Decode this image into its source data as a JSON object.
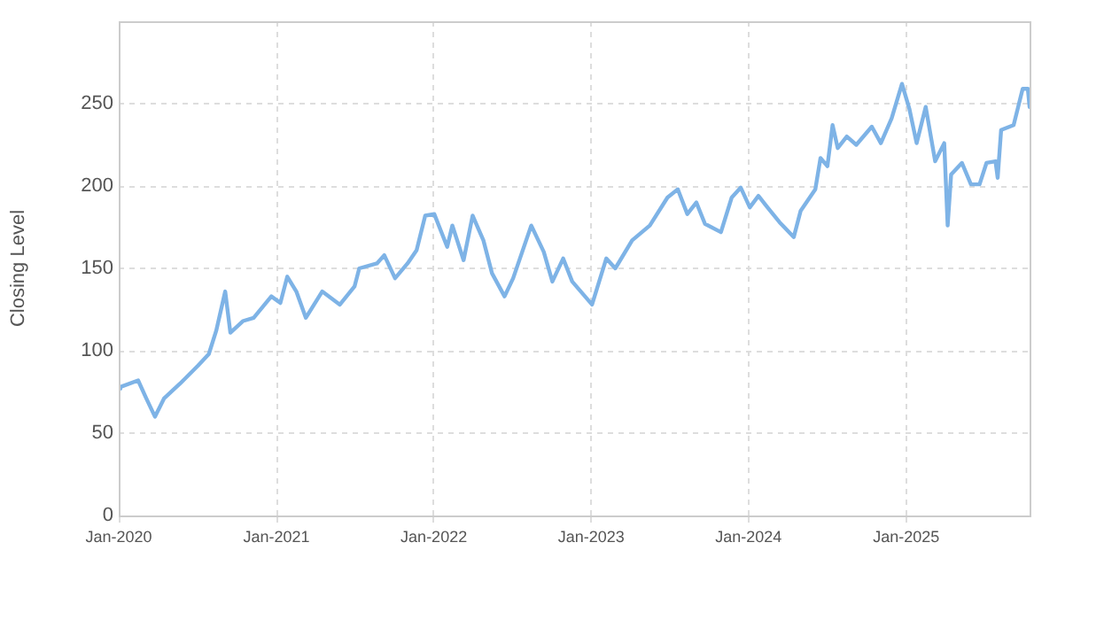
{
  "chart_data": {
    "type": "line",
    "ylabel": "Closing Level",
    "xlim": [
      "2020-01-01",
      "2025-10-14"
    ],
    "ylim": [
      0,
      300
    ],
    "yticks": [
      0,
      50,
      100,
      150,
      200,
      250
    ],
    "xticks": [
      {
        "value": "2020-01",
        "label": "Jan-2020"
      },
      {
        "value": "2021-01",
        "label": "Jan-2021"
      },
      {
        "value": "2022-01",
        "label": "Jan-2022"
      },
      {
        "value": "2023-01",
        "label": "Jan-2023"
      },
      {
        "value": "2024-01",
        "label": "Jan-2024"
      },
      {
        "value": "2025-01",
        "label": "Jan-2025"
      }
    ],
    "grid": true,
    "legend": false,
    "marker": "none",
    "line_style": "solid",
    "x": [
      "2020-01-01",
      "2020-01-05",
      "2020-02-15",
      "2020-03-05",
      "2020-03-25",
      "2020-04-15",
      "2020-05-22",
      "2020-07-03",
      "2020-07-28",
      "2020-08-14",
      "2020-09-04",
      "2020-09-16",
      "2020-10-15",
      "2020-11-09",
      "2020-12-20",
      "2021-01-10",
      "2021-01-26",
      "2021-02-16",
      "2021-03-10",
      "2021-04-17",
      "2021-05-28",
      "2021-07-01",
      "2021-07-12",
      "2021-08-22",
      "2021-09-08",
      "2021-10-03",
      "2021-11-01",
      "2021-11-22",
      "2021-12-12",
      "2022-01-02",
      "2022-02-01",
      "2022-02-13",
      "2022-03-11",
      "2022-04-01",
      "2022-04-26",
      "2022-05-16",
      "2022-06-14",
      "2022-07-04",
      "2022-08-15",
      "2022-09-13",
      "2022-10-03",
      "2022-10-28",
      "2022-11-18",
      "2023-01-03",
      "2023-02-05",
      "2023-02-26",
      "2023-04-06",
      "2023-05-17",
      "2023-06-27",
      "2023-07-21",
      "2023-08-12",
      "2023-09-02",
      "2023-09-22",
      "2023-10-29",
      "2023-11-23",
      "2023-12-14",
      "2024-01-04",
      "2024-01-24",
      "2024-02-14",
      "2024-03-13",
      "2024-04-15",
      "2024-05-01",
      "2024-06-04",
      "2024-06-16",
      "2024-07-02",
      "2024-07-14",
      "2024-07-26",
      "2024-08-16",
      "2024-09-07",
      "2024-10-13",
      "2024-11-03",
      "2024-11-28",
      "2024-12-22",
      "2025-01-08",
      "2025-01-25",
      "2025-02-15",
      "2025-03-09",
      "2025-03-30",
      "2025-04-07",
      "2025-04-15",
      "2025-05-10",
      "2025-05-31",
      "2025-06-20",
      "2025-07-06",
      "2025-07-27",
      "2025-08-01",
      "2025-08-09",
      "2025-09-07",
      "2025-09-28",
      "2025-10-10",
      "2025-10-14"
    ],
    "series": [
      {
        "color": "#7eb3e6",
        "values": [
          77,
          78,
          82,
          71,
          60,
          71,
          80,
          91,
          98,
          112,
          136,
          111,
          118,
          120,
          133,
          129,
          145,
          136,
          120,
          136,
          128,
          139,
          150,
          153,
          158,
          144,
          153,
          161,
          182,
          183,
          163,
          176,
          155,
          182,
          167,
          147,
          133,
          144,
          176,
          160,
          142,
          156,
          142,
          128,
          156,
          150,
          167,
          176,
          193,
          198,
          183,
          190,
          177,
          172,
          193,
          199,
          187,
          194,
          187,
          178,
          169,
          185,
          198,
          217,
          212,
          237,
          223,
          230,
          225,
          236,
          226,
          241,
          262,
          247,
          226,
          248,
          215,
          226,
          176,
          207,
          214,
          201,
          201,
          214,
          215,
          205,
          234,
          237,
          259,
          259,
          248
        ]
      }
    ]
  }
}
